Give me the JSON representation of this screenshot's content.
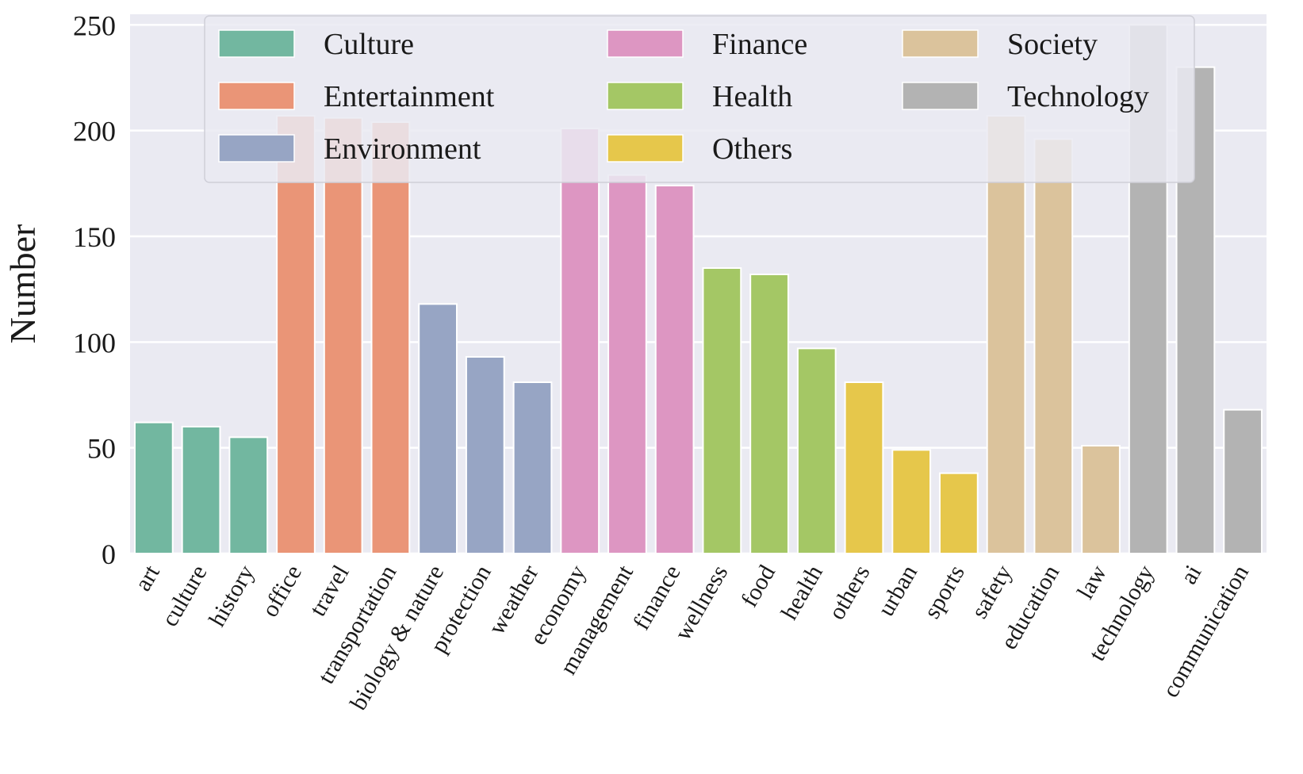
{
  "chart_data": {
    "type": "bar",
    "ylabel": "Number",
    "xlabel": "",
    "ylim": [
      0,
      255
    ],
    "yticks": [
      0,
      50,
      100,
      150,
      200,
      250
    ],
    "grid": true,
    "legend_position": "top",
    "groups": [
      {
        "name": "Culture",
        "color": "#72B7A0"
      },
      {
        "name": "Entertainment",
        "color": "#EA9577"
      },
      {
        "name": "Environment",
        "color": "#97A5C4"
      },
      {
        "name": "Finance",
        "color": "#DD96C2"
      },
      {
        "name": "Health",
        "color": "#A4C765"
      },
      {
        "name": "Others",
        "color": "#E6C74B"
      },
      {
        "name": "Society",
        "color": "#DBC39C"
      },
      {
        "name": "Technology",
        "color": "#B3B3B3"
      }
    ],
    "bars": [
      {
        "category": "art",
        "value": 62,
        "group": "Culture"
      },
      {
        "category": "culture",
        "value": 60,
        "group": "Culture"
      },
      {
        "category": "history",
        "value": 55,
        "group": "Culture"
      },
      {
        "category": "office",
        "value": 207,
        "group": "Entertainment"
      },
      {
        "category": "travel",
        "value": 206,
        "group": "Entertainment"
      },
      {
        "category": "transportation",
        "value": 204,
        "group": "Entertainment"
      },
      {
        "category": "biology & nature",
        "value": 118,
        "group": "Environment"
      },
      {
        "category": "protection",
        "value": 93,
        "group": "Environment"
      },
      {
        "category": "weather",
        "value": 81,
        "group": "Environment"
      },
      {
        "category": "economy",
        "value": 201,
        "group": "Finance"
      },
      {
        "category": "management",
        "value": 179,
        "group": "Finance"
      },
      {
        "category": "finance",
        "value": 174,
        "group": "Finance"
      },
      {
        "category": "wellness",
        "value": 135,
        "group": "Health"
      },
      {
        "category": "food",
        "value": 132,
        "group": "Health"
      },
      {
        "category": "health",
        "value": 97,
        "group": "Health"
      },
      {
        "category": "others",
        "value": 81,
        "group": "Others"
      },
      {
        "category": "urban",
        "value": 49,
        "group": "Others"
      },
      {
        "category": "sports",
        "value": 38,
        "group": "Others"
      },
      {
        "category": "safety",
        "value": 207,
        "group": "Society"
      },
      {
        "category": "education",
        "value": 196,
        "group": "Society"
      },
      {
        "category": "law",
        "value": 51,
        "group": "Society"
      },
      {
        "category": "technology",
        "value": 250,
        "group": "Technology"
      },
      {
        "category": "ai",
        "value": 230,
        "group": "Technology"
      },
      {
        "category": "communication",
        "value": 68,
        "group": "Technology"
      }
    ]
  }
}
